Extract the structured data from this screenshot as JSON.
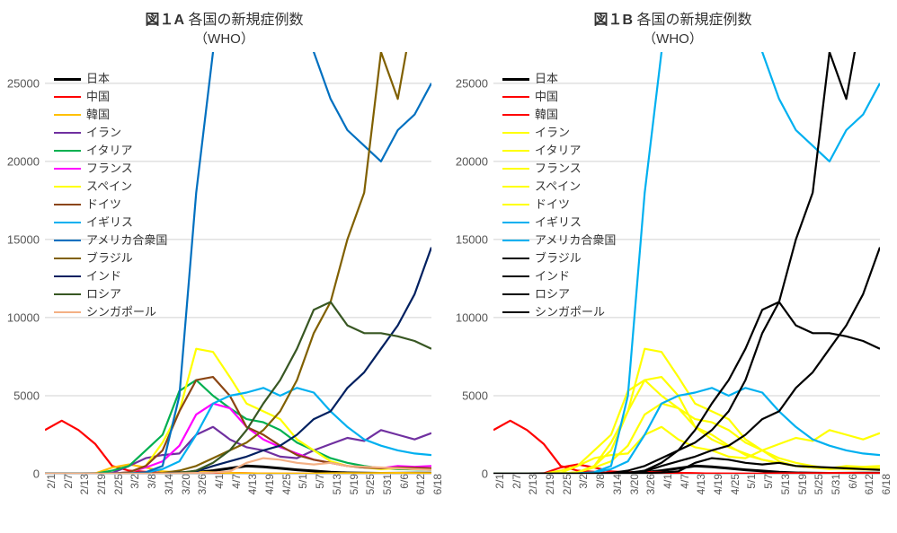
{
  "panels": [
    {
      "title_prefix": "図１A",
      "title_rest": " 各国の新規症例数",
      "subtitle": "（WHO）",
      "color_scheme": "A"
    },
    {
      "title_prefix": "図１B",
      "title_rest": " 各国の新規症例数",
      "subtitle": "（WHO）",
      "color_scheme": "B"
    }
  ],
  "chart": {
    "type": "line",
    "background_color": "#ffffff",
    "grid_color": "#d0d0d0",
    "axis_color": "#bfbfbf",
    "ylim": [
      0,
      27000
    ],
    "yticks": [
      0,
      5000,
      10000,
      15000,
      20000,
      25000
    ],
    "ytick_labels": [
      "0",
      "5000",
      "10000",
      "15000",
      "20000",
      "25000"
    ],
    "title_fontsize": 16,
    "label_fontsize": 13,
    "tick_fontsize": 12,
    "line_width": 2.2,
    "legend": {
      "position": "upper-left",
      "fontsize": 13,
      "swatch_width": 30,
      "swatch_thickness": 3
    },
    "x_categories": [
      "2/1",
      "2/7",
      "2/13",
      "2/19",
      "2/25",
      "3/2",
      "3/8",
      "3/14",
      "3/20",
      "3/26",
      "4/1",
      "4/7",
      "4/13",
      "4/19",
      "4/25",
      "5/1",
      "5/7",
      "5/13",
      "5/19",
      "5/25",
      "5/31",
      "6/6",
      "6/12",
      "6/18"
    ],
    "series": [
      {
        "name": "日本",
        "A": "#000000",
        "B": "#000000",
        "A_width": 3,
        "B_width": 3,
        "values": [
          0,
          0,
          2,
          5,
          8,
          12,
          30,
          40,
          50,
          80,
          200,
          350,
          500,
          450,
          350,
          250,
          180,
          100,
          60,
          40,
          30,
          35,
          40,
          45
        ]
      },
      {
        "name": "中国",
        "A": "#ff0000",
        "B": "#ff0000",
        "values": [
          2800,
          3400,
          2800,
          1900,
          500,
          200,
          120,
          50,
          60,
          80,
          70,
          60,
          40,
          20,
          10,
          5,
          3,
          2,
          3,
          5,
          8,
          10,
          15,
          20
        ]
      },
      {
        "name": "韓国",
        "A": "#ffc000",
        "B": "#ff0000",
        "values": [
          0,
          0,
          5,
          30,
          400,
          600,
          400,
          150,
          100,
          120,
          100,
          50,
          30,
          20,
          15,
          10,
          20,
          30,
          40,
          35,
          45,
          50,
          45,
          40
        ]
      },
      {
        "name": "イラン",
        "A": "#7030a0",
        "B": "#ffff00",
        "values": [
          0,
          0,
          0,
          0,
          50,
          500,
          1000,
          1200,
          1300,
          2500,
          3000,
          2200,
          1700,
          1500,
          1100,
          1000,
          1500,
          1900,
          2300,
          2100,
          2800,
          2500,
          2200,
          2600
        ]
      },
      {
        "name": "イタリア",
        "A": "#00b050",
        "B": "#ffff00",
        "values": [
          0,
          0,
          0,
          3,
          200,
          500,
          1500,
          2500,
          5300,
          6000,
          5000,
          4200,
          3500,
          3300,
          2800,
          2000,
          1500,
          1000,
          700,
          500,
          350,
          300,
          280,
          250
        ]
      },
      {
        "name": "フランス",
        "A": "#ff00ff",
        "B": "#ffff00",
        "values": [
          0,
          0,
          0,
          0,
          10,
          100,
          400,
          800,
          1800,
          3800,
          4500,
          4200,
          3000,
          2200,
          1700,
          1300,
          900,
          700,
          500,
          400,
          350,
          500,
          450,
          500
        ]
      },
      {
        "name": "スペイン",
        "A": "#ffff00",
        "B": "#ffff00",
        "values": [
          0,
          0,
          0,
          0,
          5,
          80,
          500,
          2000,
          4000,
          8000,
          7800,
          6200,
          4500,
          4000,
          3500,
          2200,
          1500,
          800,
          500,
          400,
          300,
          350,
          300,
          320
        ]
      },
      {
        "name": "ドイツ",
        "A": "#8b4513",
        "B": "#ffff00",
        "values": [
          0,
          0,
          0,
          0,
          10,
          100,
          500,
          1500,
          4000,
          6000,
          6200,
          5000,
          3000,
          2500,
          1800,
          1200,
          900,
          700,
          500,
          400,
          350,
          400,
          380,
          350
        ]
      },
      {
        "name": "イギリス",
        "A": "#00b0f0",
        "B": "#00b0f0",
        "values": [
          0,
          0,
          0,
          0,
          5,
          30,
          80,
          300,
          800,
          2500,
          4500,
          5000,
          5200,
          5500,
          5000,
          5500,
          5200,
          4000,
          3000,
          2200,
          1800,
          1500,
          1300,
          1200
        ]
      },
      {
        "name": "アメリカ合衆国",
        "A": "#0070c0",
        "B": "#00b0f0",
        "values": [
          0,
          0,
          0,
          0,
          2,
          20,
          100,
          500,
          5000,
          18000,
          27000,
          31000,
          30000,
          28000,
          30000,
          32000,
          27000,
          24000,
          22000,
          21000,
          20000,
          22000,
          23000,
          25000
        ]
      },
      {
        "name": "ブラジル",
        "A": "#806000",
        "B": "#000000",
        "values": [
          0,
          0,
          0,
          0,
          0,
          0,
          5,
          50,
          200,
          500,
          1000,
          1500,
          2000,
          2800,
          4000,
          6000,
          9000,
          11000,
          15000,
          18000,
          27000,
          24000,
          30000,
          28000
        ]
      },
      {
        "name": "インド",
        "A": "#002060",
        "B": "#000000",
        "values": [
          0,
          0,
          0,
          0,
          0,
          2,
          5,
          20,
          80,
          150,
          500,
          800,
          1100,
          1500,
          1800,
          2500,
          3500,
          4000,
          5500,
          6500,
          8000,
          9500,
          11500,
          14500
        ]
      },
      {
        "name": "ロシア",
        "A": "#385723",
        "B": "#000000",
        "values": [
          0,
          0,
          0,
          0,
          0,
          2,
          5,
          20,
          50,
          200,
          700,
          1500,
          2800,
          4500,
          6000,
          8000,
          10500,
          11000,
          9500,
          9000,
          9000,
          8800,
          8500,
          8000
        ]
      },
      {
        "name": "シンガポール",
        "A": "#f4b084",
        "B": "#000000",
        "values": [
          0,
          1,
          2,
          3,
          5,
          8,
          10,
          15,
          30,
          50,
          80,
          150,
          700,
          1000,
          900,
          700,
          600,
          700,
          500,
          450,
          400,
          350,
          300,
          250
        ]
      }
    ]
  }
}
